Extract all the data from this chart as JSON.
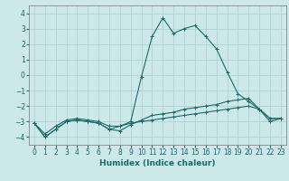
{
  "xlabel": "Humidex (Indice chaleur)",
  "background_color": "#cce8e8",
  "grid_color": "#aacece",
  "line_color": "#1a6b6b",
  "xlim": [
    -0.5,
    23.5
  ],
  "ylim": [
    -4.5,
    4.5
  ],
  "xticks": [
    0,
    1,
    2,
    3,
    4,
    5,
    6,
    7,
    8,
    9,
    10,
    11,
    12,
    13,
    14,
    15,
    16,
    17,
    18,
    19,
    20,
    21,
    22,
    23
  ],
  "yticks": [
    -4,
    -3,
    -2,
    -1,
    0,
    1,
    2,
    3,
    4
  ],
  "curve1_x": [
    0,
    1,
    2,
    3,
    4,
    5,
    6,
    7,
    8,
    9,
    10,
    11,
    12,
    13,
    14,
    15,
    16,
    17,
    18,
    19,
    20,
    21,
    22,
    23
  ],
  "curve1_y": [
    -3.1,
    -4.0,
    -3.5,
    -3.0,
    -2.9,
    -3.0,
    -3.1,
    -3.5,
    -3.3,
    -3.0,
    -0.1,
    2.5,
    3.7,
    2.7,
    3.0,
    3.2,
    2.5,
    1.7,
    0.2,
    -1.2,
    -1.7,
    -2.2,
    -3.0,
    -2.8
  ],
  "curve2_x": [
    0,
    1,
    2,
    3,
    4,
    5,
    6,
    7,
    8,
    9,
    10,
    11,
    12,
    13,
    14,
    15,
    16,
    17,
    18,
    19,
    20,
    21,
    22,
    23
  ],
  "curve2_y": [
    -3.1,
    -4.0,
    -3.5,
    -3.0,
    -2.9,
    -3.0,
    -3.1,
    -3.5,
    -3.6,
    -3.2,
    -2.9,
    -2.6,
    -2.5,
    -2.4,
    -2.2,
    -2.1,
    -2.0,
    -1.9,
    -1.7,
    -1.6,
    -1.5,
    -2.2,
    -2.8,
    -2.8
  ],
  "curve3_x": [
    0,
    1,
    2,
    3,
    4,
    5,
    6,
    7,
    8,
    9,
    10,
    11,
    12,
    13,
    14,
    15,
    16,
    17,
    18,
    19,
    20,
    21,
    22,
    23
  ],
  "curve3_y": [
    -3.1,
    -3.8,
    -3.3,
    -2.9,
    -2.8,
    -2.9,
    -3.0,
    -3.3,
    -3.3,
    -3.1,
    -3.0,
    -2.9,
    -2.8,
    -2.7,
    -2.6,
    -2.5,
    -2.4,
    -2.3,
    -2.2,
    -2.1,
    -2.0,
    -2.2,
    -2.8,
    -2.8
  ],
  "tick_fontsize": 5.5,
  "xlabel_fontsize": 6.5
}
